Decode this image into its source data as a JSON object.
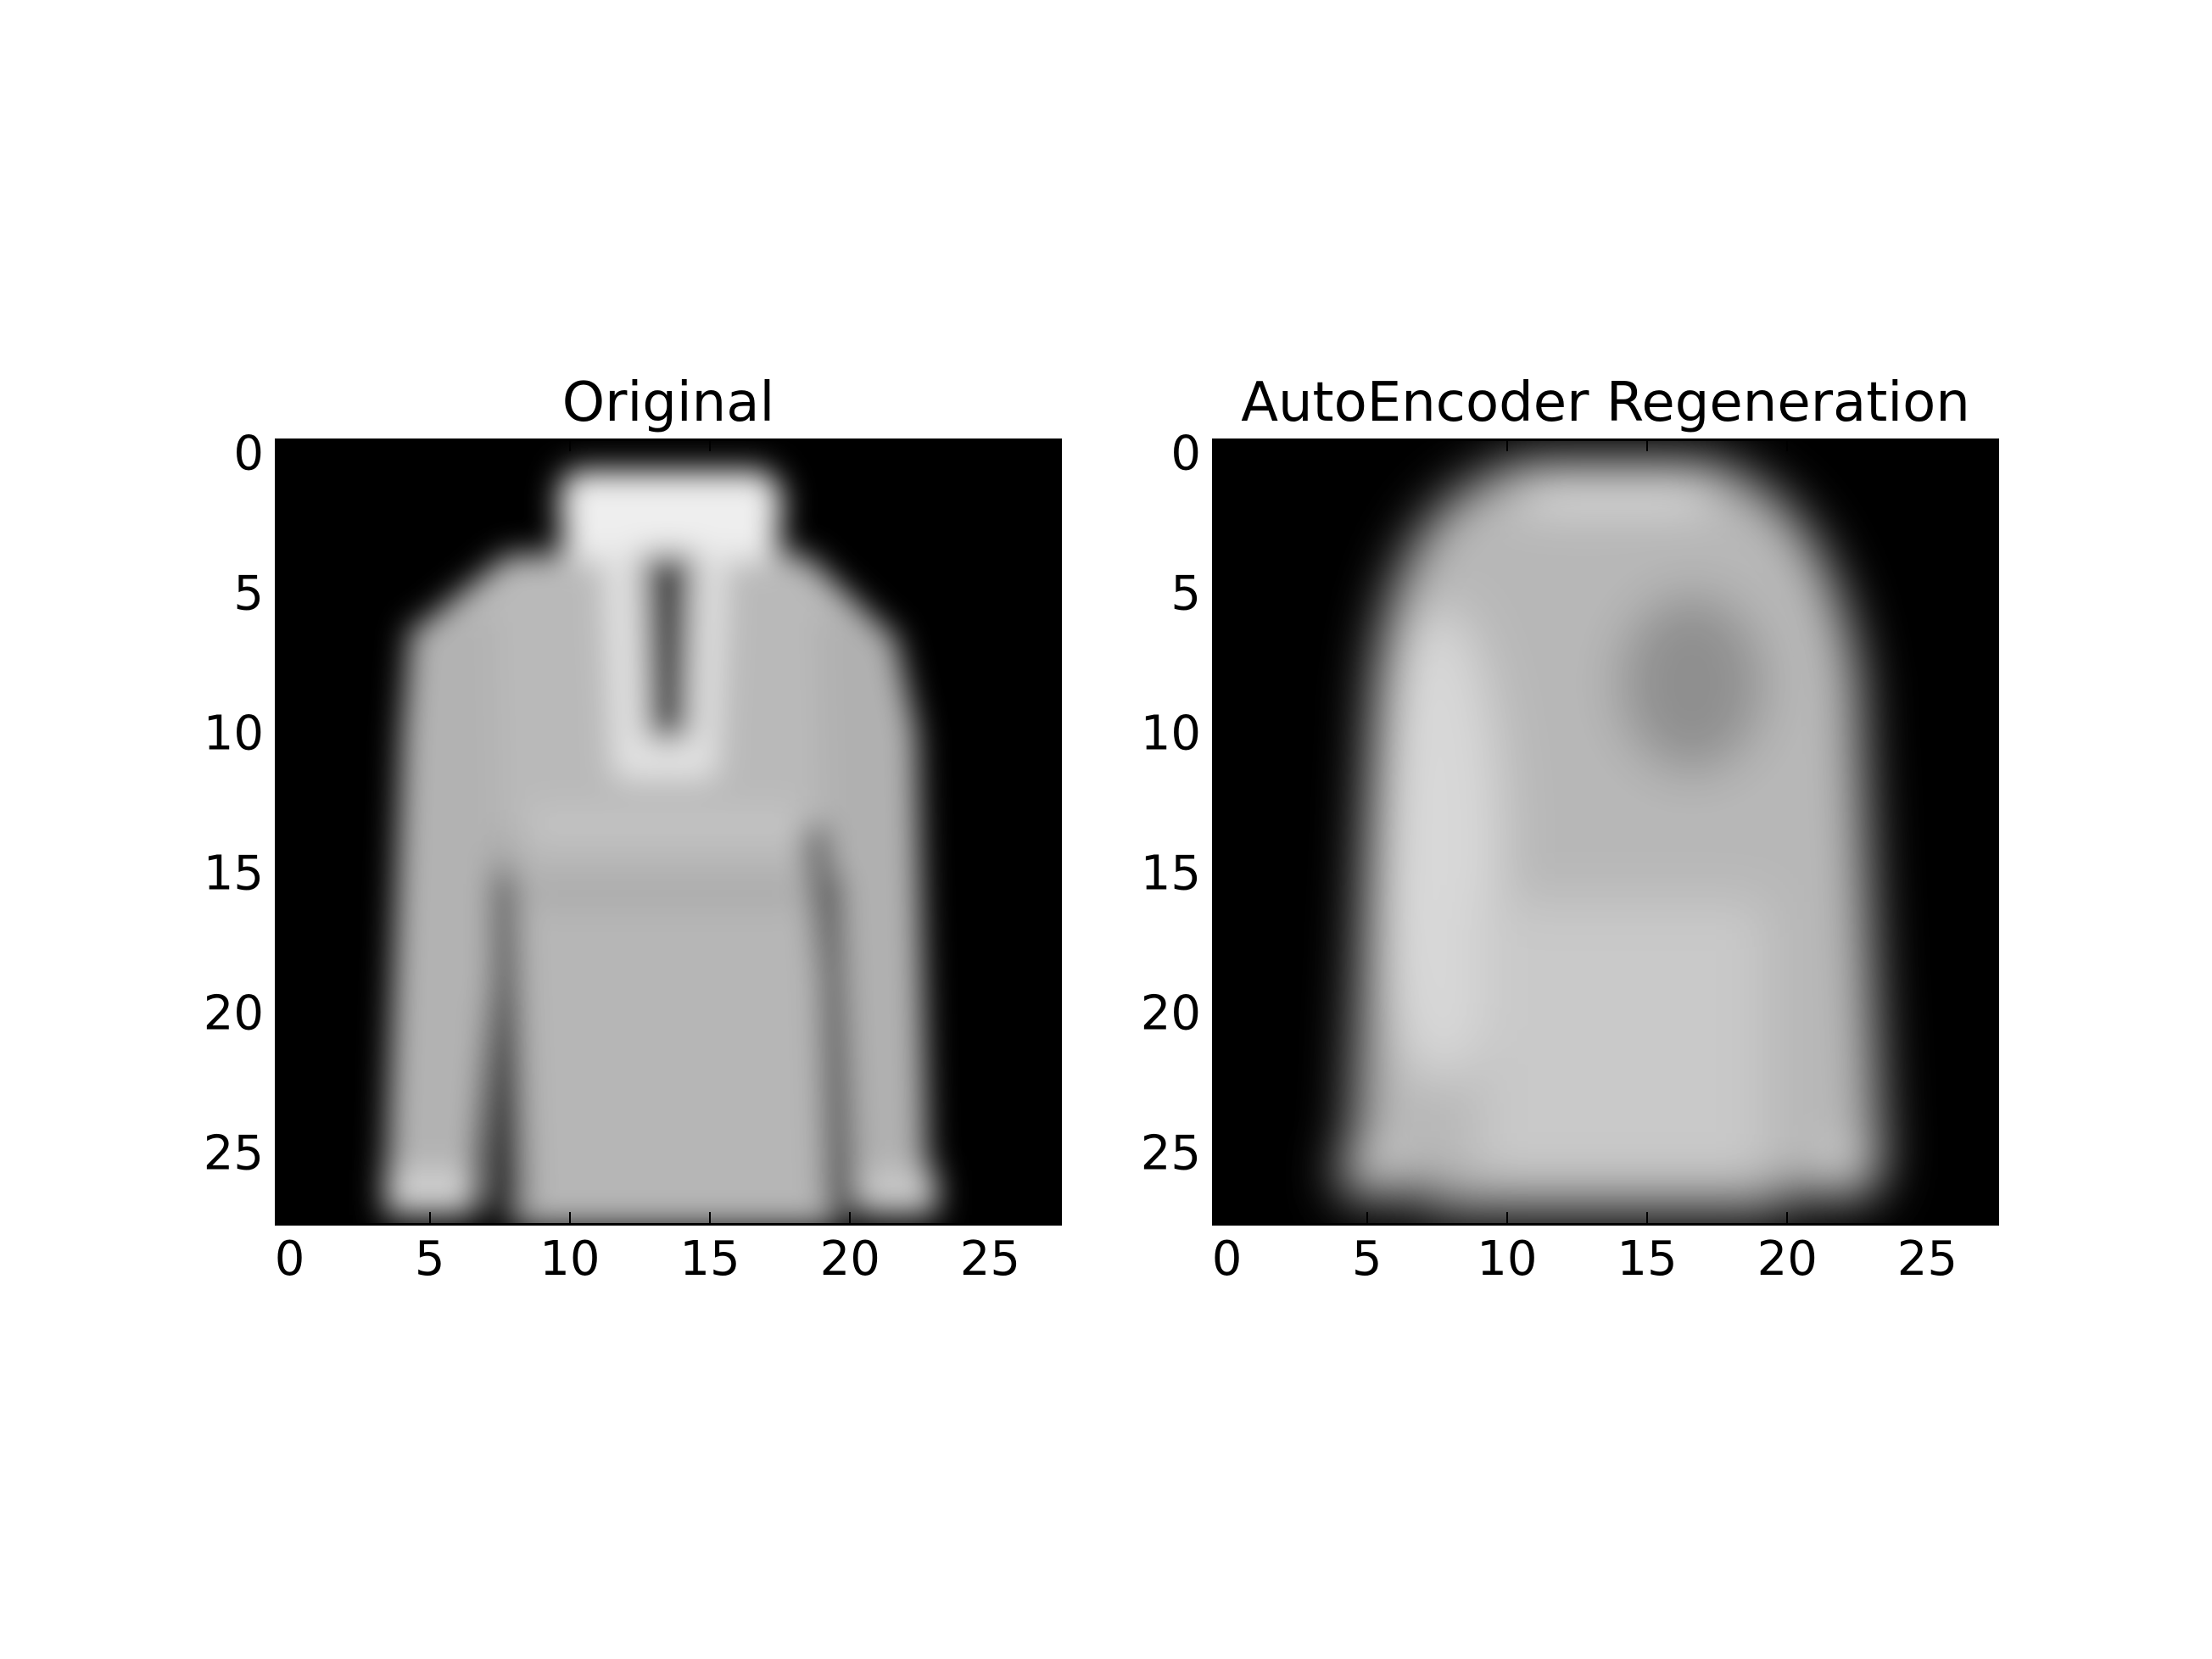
{
  "chart_data": [
    {
      "type": "heatmap",
      "title": "Original",
      "colormap": "gray",
      "xlim": [
        -0.5,
        27.5
      ],
      "ylim": [
        27.5,
        -0.5
      ],
      "xticks": [
        0,
        5,
        10,
        15,
        20,
        25
      ],
      "yticks": [
        0,
        5,
        10,
        15,
        20,
        25
      ],
      "xtick_labels": [
        "0",
        "5",
        "10",
        "15",
        "20",
        "25"
      ],
      "ytick_labels": [
        "0",
        "5",
        "10",
        "15",
        "20",
        "25"
      ],
      "grid": false,
      "image": "hooded sweatshirt, 28x28 grayscale"
    },
    {
      "type": "heatmap",
      "title": "AutoEncoder Regeneration",
      "colormap": "gray",
      "xlim": [
        -0.5,
        27.5
      ],
      "ylim": [
        27.5,
        -0.5
      ],
      "xticks": [
        0,
        5,
        10,
        15,
        20,
        25
      ],
      "yticks": [
        0,
        5,
        10,
        15,
        20,
        25
      ],
      "xtick_labels": [
        "0",
        "5",
        "10",
        "15",
        "20",
        "25"
      ],
      "ytick_labels": [
        "0",
        "5",
        "10",
        "15",
        "20",
        "25"
      ],
      "grid": false,
      "image": "blurred reconstruction of the sweatshirt, 28x28 grayscale"
    }
  ]
}
